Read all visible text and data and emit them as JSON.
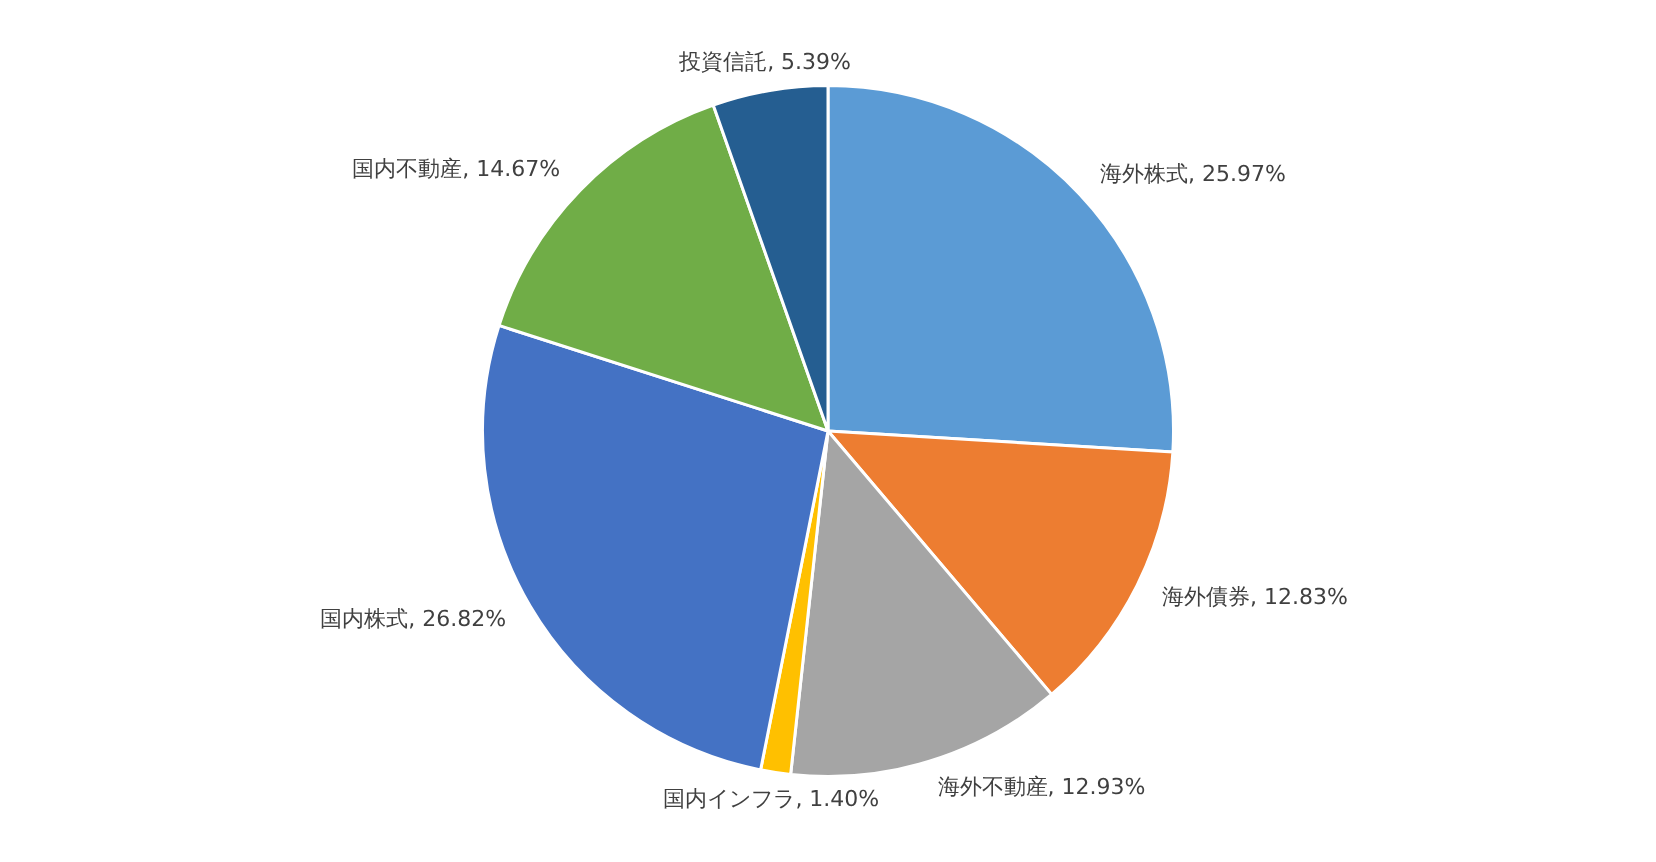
{
  "chart_data": {
    "type": "pie",
    "categories": [
      "海外株式",
      "海外債券",
      "海外不動産",
      "国内インフラ",
      "国内株式",
      "国内不動産",
      "投資信託"
    ],
    "values": [
      25.97,
      12.83,
      12.93,
      1.4,
      26.82,
      14.67,
      5.39
    ],
    "colors": [
      "#5b9bd5",
      "#ed7d31",
      "#a5a5a5",
      "#ffc000",
      "#4472c4",
      "#70ad47",
      "#255e91"
    ],
    "value_labels": [
      "25.97%",
      "12.83%",
      "12.93%",
      "1.40%",
      "26.82%",
      "14.67%",
      "5.39%"
    ],
    "legend": false
  }
}
